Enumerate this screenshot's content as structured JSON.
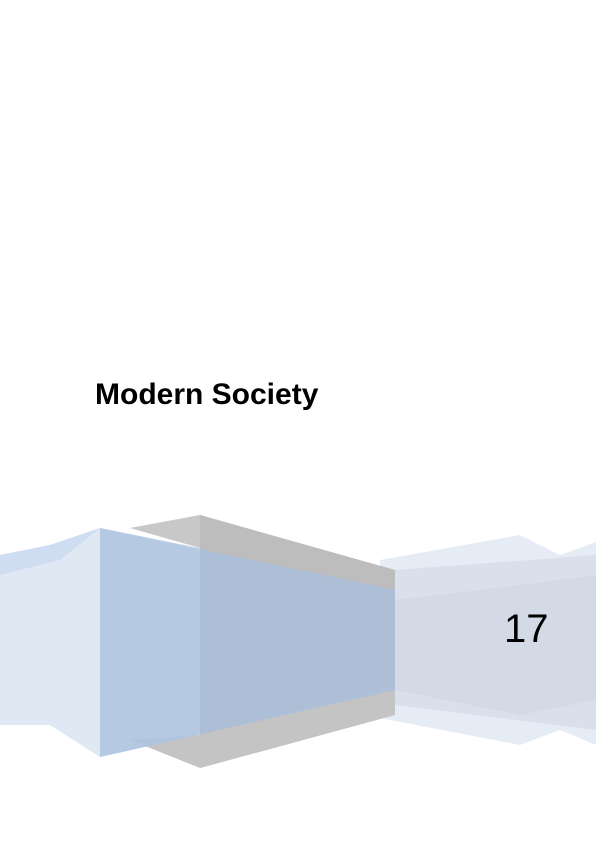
{
  "title": "Modern Society",
  "page_number": "17"
}
